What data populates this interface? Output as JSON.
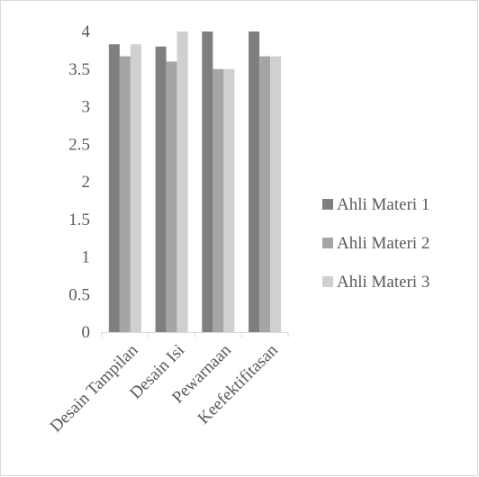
{
  "chart_data": {
    "type": "bar",
    "categories": [
      "Desain Tampilan",
      "Desain Isi",
      "Pewarnaan",
      "Keefektifitasan"
    ],
    "series": [
      {
        "name": "Ahli Materi 1",
        "values": [
          3.83,
          3.8,
          4.0,
          4.0
        ],
        "color": "#7f7f7f"
      },
      {
        "name": "Ahli Materi 2",
        "values": [
          3.67,
          3.6,
          3.5,
          3.67
        ],
        "color": "#a5a5a5"
      },
      {
        "name": "Ahli Materi 3",
        "values": [
          3.83,
          4.0,
          3.5,
          3.67
        ],
        "color": "#d0d0d0"
      }
    ],
    "yticks": [
      "0",
      "0.5",
      "1",
      "1.5",
      "2",
      "2.5",
      "3",
      "3.5",
      "4"
    ],
    "ylim": [
      0,
      4
    ],
    "grid": false,
    "legend_position": "right"
  }
}
